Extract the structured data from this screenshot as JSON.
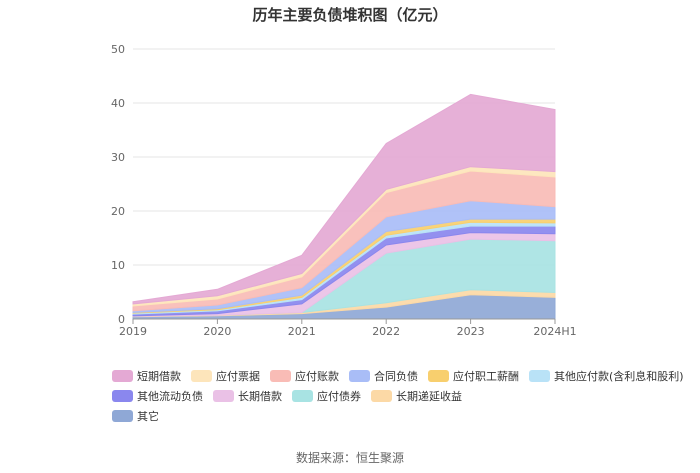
{
  "chart_data": {
    "type": "area",
    "stacked": true,
    "title": "历年主要负债堆积图（亿元）",
    "x": [
      "2019",
      "2020",
      "2021",
      "2022",
      "2023",
      "2024H1"
    ],
    "ylim": [
      0,
      50
    ],
    "yticks": [
      0,
      10,
      20,
      30,
      40,
      50
    ],
    "grid": true,
    "legend_position": "bottom",
    "series": [
      {
        "name": "其它",
        "color": "#8fa8d6",
        "values": [
          0.4,
          0.6,
          1.0,
          2.2,
          4.5,
          4.0
        ]
      },
      {
        "name": "长期递延收益",
        "color": "#fcd9a6",
        "values": [
          0.1,
          0.1,
          0.2,
          0.8,
          0.9,
          0.9
        ]
      },
      {
        "name": "应付债券",
        "color": "#a8e3e3",
        "values": [
          0,
          0,
          0,
          9.2,
          9.4,
          9.6
        ]
      },
      {
        "name": "长期借款",
        "color": "#eac1e6",
        "values": [
          0.1,
          0.3,
          1.6,
          1.5,
          1.2,
          1.3
        ]
      },
      {
        "name": "其他流动负债",
        "color": "#8a87ee",
        "values": [
          0.3,
          0.5,
          0.8,
          1.3,
          1.2,
          1.4
        ]
      },
      {
        "name": "其他应付款(含利息和股利)",
        "color": "#b9e2f7",
        "values": [
          0.2,
          0.2,
          0.4,
          0.5,
          0.7,
          0.6
        ]
      },
      {
        "name": "应付职工薪酬",
        "color": "#f8cf6e",
        "values": [
          0.1,
          0.2,
          0.4,
          0.7,
          0.6,
          0.7
        ]
      },
      {
        "name": "合同负债",
        "color": "#a9bdf7",
        "values": [
          0.3,
          0.7,
          1.4,
          2.7,
          3.4,
          2.3
        ]
      },
      {
        "name": "应付账款",
        "color": "#f9bcb6",
        "values": [
          0.9,
          1.1,
          2.0,
          4.5,
          5.5,
          5.5
        ]
      },
      {
        "name": "应付票据",
        "color": "#fde5bb",
        "values": [
          0.4,
          0.6,
          0.6,
          0.6,
          0.8,
          1.0
        ]
      },
      {
        "name": "短期借款",
        "color": "#e4a9d4",
        "values": [
          0.4,
          1.2,
          3.4,
          8.5,
          13.4,
          11.5
        ]
      }
    ],
    "legend_order": [
      "短期借款",
      "应付票据",
      "应付账款",
      "合同负债",
      "应付职工薪酬",
      "其他应付款(含利息和股利)",
      "其他流动负债",
      "长期借款",
      "应付债券",
      "长期递延收益",
      "其它"
    ]
  },
  "source_text": "数据来源：恒生聚源"
}
